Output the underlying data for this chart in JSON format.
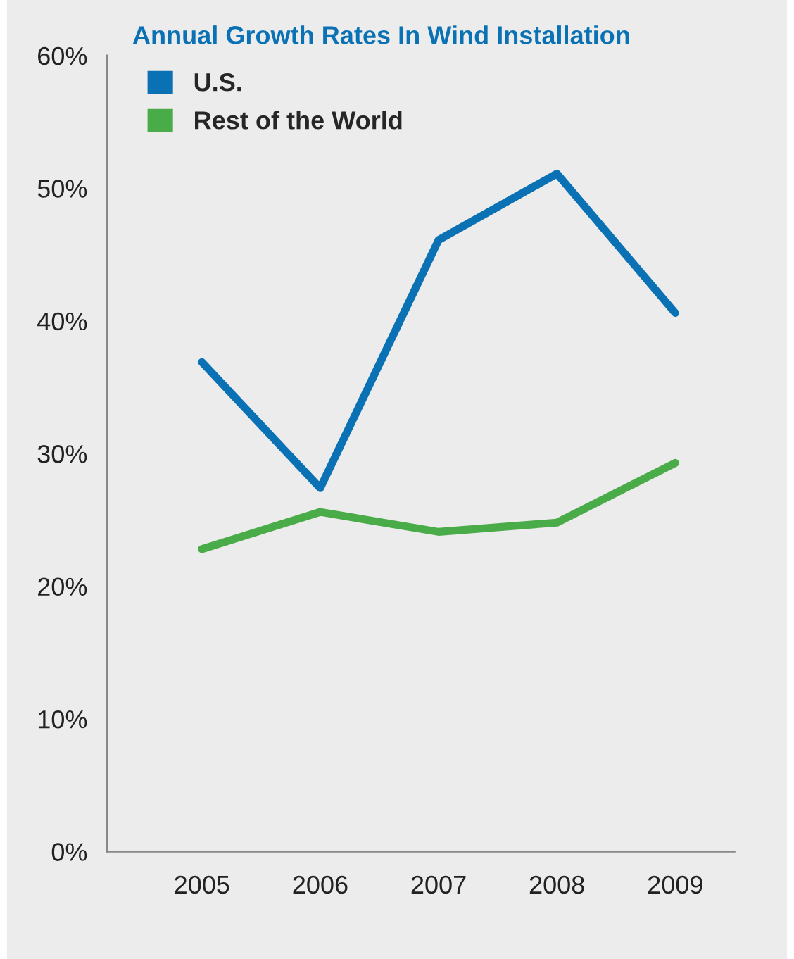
{
  "chart_data": {
    "type": "line",
    "title": "Annual Growth Rates In Wind Installation",
    "categories": [
      "2005",
      "2006",
      "2007",
      "2008",
      "2009"
    ],
    "series": [
      {
        "name": "U.S.",
        "color": "#0a72b4",
        "values": [
          36.9,
          27.4,
          46.1,
          51.1,
          40.6
        ]
      },
      {
        "name": "Rest of the World",
        "color": "#4aac48",
        "values": [
          22.8,
          25.6,
          24.1,
          24.8,
          29.3
        ]
      }
    ],
    "ylim": [
      0,
      60
    ],
    "yticks": [
      {
        "value": 0,
        "label": "0%"
      },
      {
        "value": 10,
        "label": "10%"
      },
      {
        "value": 20,
        "label": "20%"
      },
      {
        "value": 30,
        "label": "30%"
      },
      {
        "value": 40,
        "label": "40%"
      },
      {
        "value": 50,
        "label": "50%"
      },
      {
        "value": 60,
        "label": "60%"
      }
    ],
    "grid": false,
    "legend": "top left",
    "marker": "none",
    "line_style": "solid"
  }
}
